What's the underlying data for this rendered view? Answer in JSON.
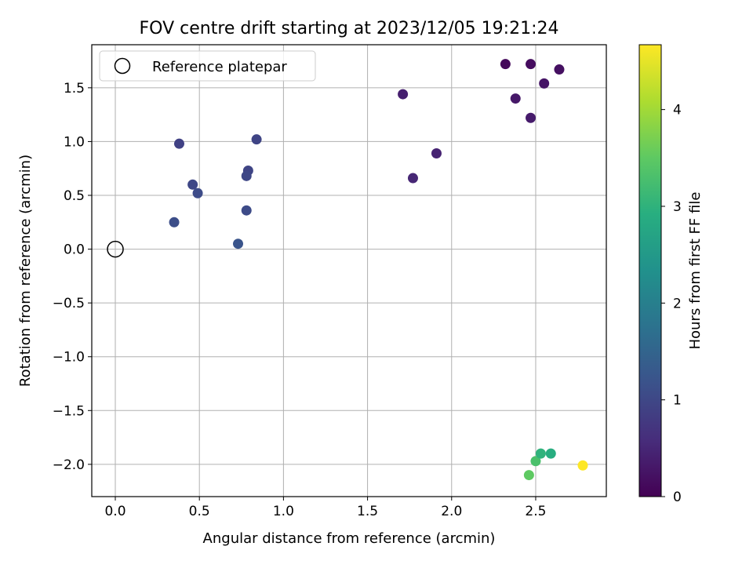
{
  "chart_data": {
    "type": "scatter",
    "title": "FOV centre drift starting at 2023/12/05 19:21:24",
    "xlabel": "Angular distance from reference (arcmin)",
    "ylabel": "Rotation from reference (arcmin)",
    "xlim": [
      -0.14,
      2.92
    ],
    "ylim": [
      -2.3,
      1.9
    ],
    "xticks": [
      0.0,
      0.5,
      1.0,
      1.5,
      2.0,
      2.5
    ],
    "xtick_labels": [
      "0.0",
      "0.5",
      "1.0",
      "1.5",
      "2.0",
      "2.5"
    ],
    "yticks": [
      -2.0,
      -1.5,
      -1.0,
      -0.5,
      0.0,
      0.5,
      1.0,
      1.5
    ],
    "ytick_labels": [
      "−2.0",
      "−1.5",
      "−1.0",
      "−0.5",
      "0.0",
      "0.5",
      "1.0",
      "1.5"
    ],
    "grid": true,
    "legend": {
      "position": "top-left",
      "entries": [
        "Reference platepar"
      ]
    },
    "reference_point": {
      "x": 0.0,
      "y": 0.0
    },
    "colorbar": {
      "label": "Hours from first FF file",
      "range": [
        0,
        4.67
      ],
      "ticks": [
        0,
        1,
        2,
        3,
        4
      ],
      "tick_labels": [
        "0",
        "1",
        "2",
        "3",
        "4"
      ],
      "colormap": "viridis"
    },
    "points": [
      {
        "x": 2.32,
        "y": 1.72,
        "hours": 0.1
      },
      {
        "x": 2.47,
        "y": 1.72,
        "hours": 0.15
      },
      {
        "x": 2.64,
        "y": 1.67,
        "hours": 0.2
      },
      {
        "x": 2.55,
        "y": 1.54,
        "hours": 0.25
      },
      {
        "x": 2.38,
        "y": 1.4,
        "hours": 0.3
      },
      {
        "x": 2.47,
        "y": 1.22,
        "hours": 0.35
      },
      {
        "x": 1.71,
        "y": 1.44,
        "hours": 0.4
      },
      {
        "x": 1.91,
        "y": 0.89,
        "hours": 0.45
      },
      {
        "x": 1.77,
        "y": 0.66,
        "hours": 0.5
      },
      {
        "x": 0.38,
        "y": 0.98,
        "hours": 0.9
      },
      {
        "x": 0.84,
        "y": 1.02,
        "hours": 0.95
      },
      {
        "x": 0.79,
        "y": 0.73,
        "hours": 0.95
      },
      {
        "x": 0.78,
        "y": 0.68,
        "hours": 1.0
      },
      {
        "x": 0.46,
        "y": 0.6,
        "hours": 1.0
      },
      {
        "x": 0.49,
        "y": 0.52,
        "hours": 1.05
      },
      {
        "x": 0.78,
        "y": 0.36,
        "hours": 1.05
      },
      {
        "x": 0.35,
        "y": 0.25,
        "hours": 1.1
      },
      {
        "x": 0.73,
        "y": 0.05,
        "hours": 1.2
      },
      {
        "x": 2.46,
        "y": -2.1,
        "hours": 3.5
      },
      {
        "x": 2.5,
        "y": -1.97,
        "hours": 3.3
      },
      {
        "x": 2.53,
        "y": -1.9,
        "hours": 3.0
      },
      {
        "x": 2.59,
        "y": -1.9,
        "hours": 2.9
      },
      {
        "x": 2.78,
        "y": -2.01,
        "hours": 4.67
      }
    ]
  }
}
